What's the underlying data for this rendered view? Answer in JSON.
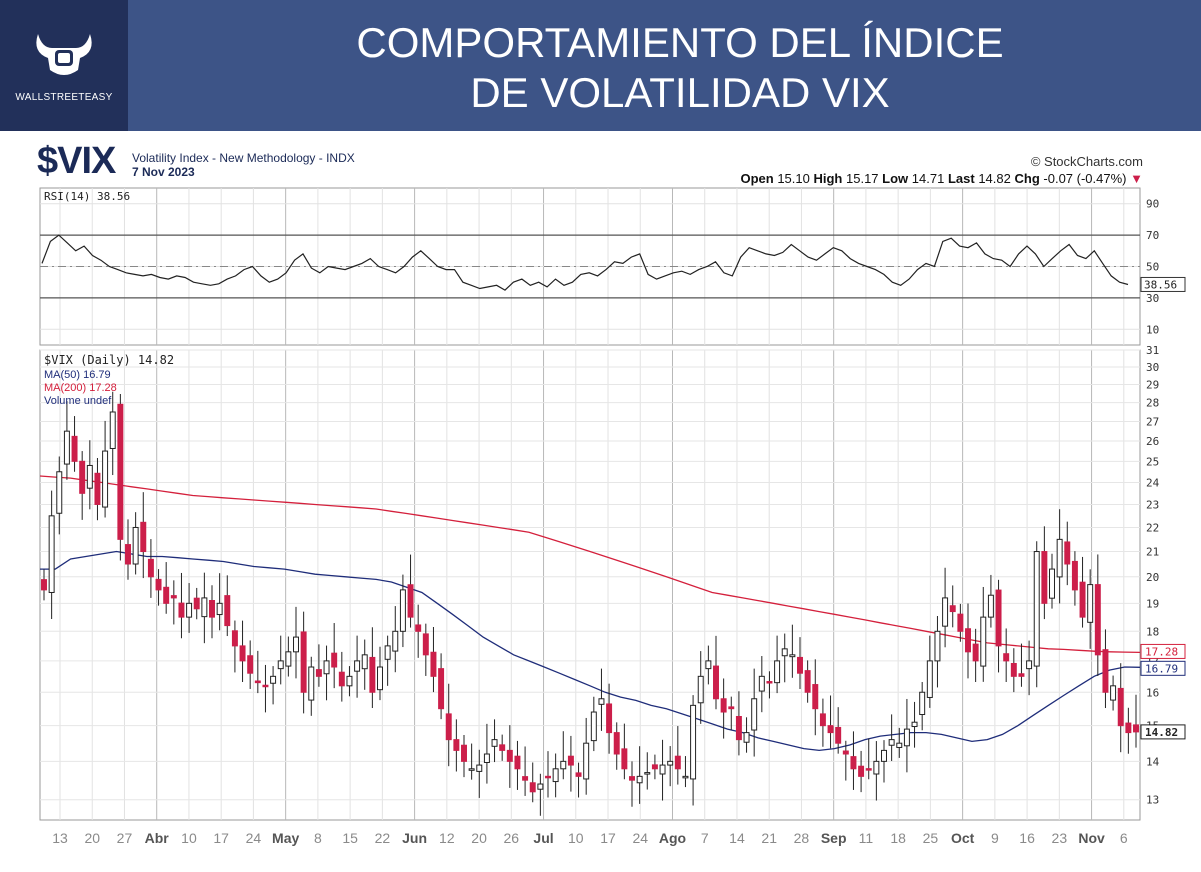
{
  "banner": {
    "title_line1": "COMPORTAMIENTO DEL ÍNDICE",
    "title_line2": "DE VOLATILIDAD VIX",
    "logo_text": "WALLSTREETEASY"
  },
  "header": {
    "symbol": "$VIX",
    "description": "Volatility Index - New Methodology - INDX",
    "date": "7 Nov 2023",
    "brand": "© StockCharts.com",
    "open_label": "Open",
    "open": "15.10",
    "high_label": "High",
    "high": "15.17",
    "low_label": "Low",
    "low": "14.71",
    "last_label": "Last",
    "last": "14.82",
    "chg_label": "Chg",
    "chg": "-0.07 (-0.47%)"
  },
  "colors": {
    "up": "#ffffff",
    "down": "#cc1f4a",
    "ma50": "#1f2d7a",
    "ma200": "#d4203c",
    "rsi": "#222222"
  },
  "chart_data": [
    {
      "type": "line",
      "legend": "RSI(14) 38.56",
      "ylim": [
        0,
        100
      ],
      "yticks": [
        10,
        30,
        50,
        70,
        90
      ],
      "reference_lines": [
        30,
        50,
        70
      ],
      "last_value": "38.56",
      "series": [
        {
          "name": "RSI(14)",
          "values": [
            52,
            66,
            70,
            65,
            60,
            63,
            57,
            54,
            50,
            48,
            46,
            45,
            44,
            45,
            43,
            42,
            44,
            43,
            40,
            39,
            38,
            39,
            42,
            44,
            48,
            50,
            44,
            40,
            42,
            46,
            54,
            58,
            49,
            46,
            50,
            49,
            48,
            50,
            52,
            55,
            50,
            48,
            46,
            50,
            56,
            60,
            55,
            50,
            48,
            48,
            40,
            38,
            36,
            37,
            38,
            35,
            40,
            42,
            38,
            40,
            37,
            42,
            38,
            40,
            45,
            46,
            44,
            48,
            53,
            52,
            56,
            58,
            45,
            42,
            44,
            46,
            47,
            45,
            48,
            50,
            53,
            46,
            44,
            56,
            62,
            60,
            58,
            57,
            59,
            64,
            60,
            56,
            54,
            58,
            62,
            60,
            55,
            52,
            50,
            48,
            45,
            40,
            38,
            42,
            48,
            52,
            50,
            66,
            68,
            63,
            62,
            65,
            58,
            55,
            54,
            50,
            58,
            63,
            58,
            50,
            55,
            60,
            64,
            57,
            55,
            60,
            52,
            44,
            40,
            38.56
          ]
        }
      ]
    },
    {
      "type": "candlestick",
      "legend": "$VIX (Daily) 14.82",
      "ylim": [
        12.5,
        31
      ],
      "log_scale": true,
      "yticks": [
        13,
        14,
        15,
        16,
        17,
        18,
        19,
        20,
        21,
        22,
        23,
        24,
        25,
        26,
        27,
        28,
        29,
        30,
        31
      ],
      "x_tick_labels": [
        "13",
        "20",
        "27",
        "Abr",
        "10",
        "17",
        "24",
        "May",
        "8",
        "15",
        "22",
        "Jun",
        "12",
        "20",
        "26",
        "Jul",
        "10",
        "17",
        "24",
        "Ago",
        "7",
        "14",
        "21",
        "28",
        "Sep",
        "11",
        "18",
        "25",
        "Oct",
        "9",
        "16",
        "23",
        "Nov",
        "6"
      ],
      "close": [
        19.5,
        22.5,
        24.5,
        26.5,
        25.0,
        23.5,
        24.8,
        23.0,
        25.5,
        27.5,
        21.5,
        20.5,
        22.0,
        21.0,
        20.0,
        19.5,
        19.0,
        19.2,
        18.5,
        19.0,
        18.8,
        19.2,
        18.5,
        19.0,
        18.2,
        17.5,
        17.0,
        16.6,
        16.3,
        16.2,
        16.5,
        17.0,
        17.3,
        17.8,
        16.0,
        16.8,
        16.5,
        17.0,
        16.8,
        16.2,
        16.5,
        17.0,
        17.2,
        16.0,
        16.8,
        17.5,
        18.0,
        19.5,
        18.5,
        18.0,
        17.2,
        16.5,
        15.5,
        14.6,
        14.3,
        14.0,
        13.8,
        13.9,
        14.2,
        14.6,
        14.3,
        14.0,
        13.8,
        13.5,
        13.2,
        13.4,
        13.6,
        13.8,
        14.0,
        13.9,
        13.6,
        14.5,
        15.4,
        15.8,
        14.8,
        14.2,
        13.8,
        13.5,
        13.6,
        13.7,
        13.8,
        13.9,
        14.0,
        13.8,
        13.6,
        15.6,
        16.5,
        17.0,
        15.8,
        15.4,
        15.5,
        14.6,
        14.8,
        15.8,
        16.5,
        16.3,
        17.0,
        17.4,
        17.2,
        16.6,
        16.0,
        15.5,
        15.0,
        14.8,
        14.5,
        14.2,
        13.8,
        13.6,
        13.8,
        14.0,
        14.3,
        14.6,
        14.5,
        14.9,
        15.1,
        16.0,
        17.0,
        18.0,
        19.2,
        18.7,
        18.0,
        17.3,
        17.0,
        18.5,
        19.3,
        17.5,
        17.0,
        16.5,
        16.5,
        17.0,
        21.0,
        19.0,
        20.3,
        21.5,
        20.5,
        19.5,
        18.5,
        19.7,
        17.2,
        16.0,
        16.2,
        15.0,
        14.8,
        14.82
      ]
    },
    {
      "type": "line",
      "series": [
        {
          "name": "MA(50) 16.79",
          "values": [
            20.3,
            20.3,
            20.7,
            20.8,
            20.9,
            21.0,
            20.9,
            20.8,
            20.8,
            20.75,
            20.7,
            20.65,
            20.6,
            20.5,
            20.4,
            20.35,
            20.3,
            20.2,
            20.1,
            20.05,
            20.0,
            19.95,
            19.9,
            19.8,
            19.6,
            19.4,
            19.0,
            18.6,
            18.2,
            17.8,
            17.5,
            17.2,
            17.0,
            16.8,
            16.6,
            16.4,
            16.2,
            16.0,
            15.85,
            15.75,
            15.6,
            15.5,
            15.35,
            15.2,
            15.05,
            14.9,
            14.8,
            14.65,
            14.55,
            14.45,
            14.35,
            14.3,
            14.35,
            14.45,
            14.6,
            14.7,
            14.75,
            14.8,
            14.8,
            14.75,
            14.65,
            14.55,
            14.6,
            14.75,
            15.0,
            15.3,
            15.6,
            15.9,
            16.2,
            16.5,
            16.7,
            16.8,
            16.79
          ]
        },
        {
          "name": "MA(200) 17.28",
          "values": [
            24.3,
            24.25,
            24.2,
            24.1,
            24.0,
            23.9,
            23.8,
            23.7,
            23.6,
            23.5,
            23.4,
            23.35,
            23.3,
            23.25,
            23.2,
            23.15,
            23.1,
            23.05,
            23.0,
            22.95,
            22.9,
            22.85,
            22.8,
            22.7,
            22.6,
            22.5,
            22.4,
            22.3,
            22.2,
            22.1,
            22.0,
            21.9,
            21.8,
            21.6,
            21.4,
            21.2,
            21.0,
            20.8,
            20.6,
            20.4,
            20.2,
            20.0,
            19.8,
            19.6,
            19.4,
            19.3,
            19.2,
            19.1,
            19.0,
            18.9,
            18.8,
            18.7,
            18.6,
            18.5,
            18.4,
            18.3,
            18.2,
            18.1,
            18.0,
            17.9,
            17.8,
            17.7,
            17.6,
            17.55,
            17.5,
            17.45,
            17.4,
            17.38,
            17.35,
            17.32,
            17.3,
            17.29,
            17.28
          ]
        },
        {
          "name": "Volume undef",
          "values": []
        }
      ],
      "last_labels": [
        "17.28",
        "16.79",
        "14.82"
      ]
    }
  ]
}
